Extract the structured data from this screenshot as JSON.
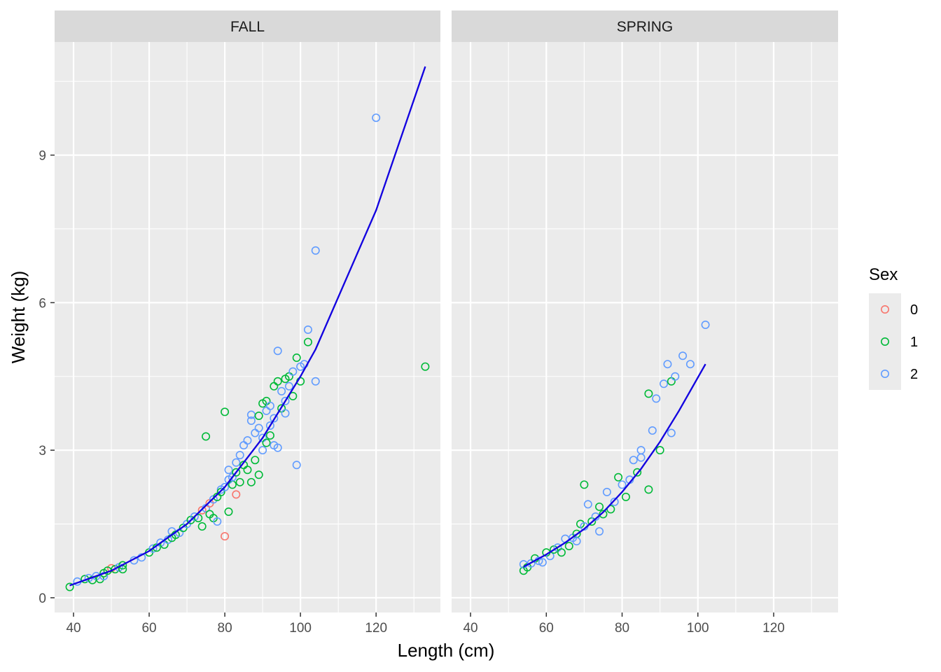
{
  "chart_data": {
    "type": "scatter",
    "xlabel": "Length (cm)",
    "ylabel": "Weight (kg)",
    "xlim": [
      35,
      137
    ],
    "ylim": [
      -0.3,
      11.3
    ],
    "x_ticks": [
      40,
      60,
      80,
      100,
      120
    ],
    "y_ticks": [
      0,
      3,
      6,
      9
    ],
    "grid": true,
    "legend": {
      "title": "Sex",
      "position": "right"
    },
    "groups": [
      {
        "label": "0",
        "color": "#F8766D"
      },
      {
        "label": "1",
        "color": "#00BA38"
      },
      {
        "label": "2",
        "color": "#619CFF"
      }
    ],
    "panels": [
      {
        "title": "FALL",
        "points": [
          {
            "sex": "1",
            "x": 39,
            "y": 0.22
          },
          {
            "sex": "2",
            "x": 41,
            "y": 0.33
          },
          {
            "sex": "1",
            "x": 43,
            "y": 0.38
          },
          {
            "sex": "2",
            "x": 44,
            "y": 0.4
          },
          {
            "sex": "1",
            "x": 45,
            "y": 0.36
          },
          {
            "sex": "2",
            "x": 46,
            "y": 0.44
          },
          {
            "sex": "1",
            "x": 47,
            "y": 0.38
          },
          {
            "sex": "1",
            "x": 48,
            "y": 0.5
          },
          {
            "sex": "2",
            "x": 48,
            "y": 0.44
          },
          {
            "sex": "0",
            "x": 50,
            "y": 0.6
          },
          {
            "sex": "1",
            "x": 49,
            "y": 0.55
          },
          {
            "sex": "1",
            "x": 51,
            "y": 0.58
          },
          {
            "sex": "2",
            "x": 52,
            "y": 0.62
          },
          {
            "sex": "1",
            "x": 53,
            "y": 0.66
          },
          {
            "sex": "1",
            "x": 53,
            "y": 0.58
          },
          {
            "sex": "2",
            "x": 56,
            "y": 0.76
          },
          {
            "sex": "2",
            "x": 58,
            "y": 0.82
          },
          {
            "sex": "1",
            "x": 60,
            "y": 0.92
          },
          {
            "sex": "2",
            "x": 61,
            "y": 1.0
          },
          {
            "sex": "1",
            "x": 62,
            "y": 1.02
          },
          {
            "sex": "2",
            "x": 63,
            "y": 1.12
          },
          {
            "sex": "1",
            "x": 64,
            "y": 1.08
          },
          {
            "sex": "2",
            "x": 65,
            "y": 1.18
          },
          {
            "sex": "1",
            "x": 66,
            "y": 1.22
          },
          {
            "sex": "2",
            "x": 66,
            "y": 1.35
          },
          {
            "sex": "1",
            "x": 67,
            "y": 1.28
          },
          {
            "sex": "2",
            "x": 68,
            "y": 1.32
          },
          {
            "sex": "1",
            "x": 69,
            "y": 1.42
          },
          {
            "sex": "2",
            "x": 70,
            "y": 1.5
          },
          {
            "sex": "1",
            "x": 71,
            "y": 1.58
          },
          {
            "sex": "2",
            "x": 72,
            "y": 1.65
          },
          {
            "sex": "1",
            "x": 73,
            "y": 1.62
          },
          {
            "sex": "0",
            "x": 74,
            "y": 1.78
          },
          {
            "sex": "1",
            "x": 74,
            "y": 1.45
          },
          {
            "sex": "2",
            "x": 75,
            "y": 1.82
          },
          {
            "sex": "1",
            "x": 75,
            "y": 3.28
          },
          {
            "sex": "0",
            "x": 76,
            "y": 1.92
          },
          {
            "sex": "1",
            "x": 76,
            "y": 1.7
          },
          {
            "sex": "2",
            "x": 77,
            "y": 2.0
          },
          {
            "sex": "1",
            "x": 77,
            "y": 1.62
          },
          {
            "sex": "2",
            "x": 78,
            "y": 1.55
          },
          {
            "sex": "1",
            "x": 78,
            "y": 2.05
          },
          {
            "sex": "0",
            "x": 80,
            "y": 1.25
          },
          {
            "sex": "1",
            "x": 80,
            "y": 3.78
          },
          {
            "sex": "2",
            "x": 79,
            "y": 2.2
          },
          {
            "sex": "1",
            "x": 79,
            "y": 2.15
          },
          {
            "sex": "2",
            "x": 80,
            "y": 2.25
          },
          {
            "sex": "1",
            "x": 81,
            "y": 1.75
          },
          {
            "sex": "2",
            "x": 81,
            "y": 2.6
          },
          {
            "sex": "2",
            "x": 81,
            "y": 2.4
          },
          {
            "sex": "1",
            "x": 82,
            "y": 2.3
          },
          {
            "sex": "0",
            "x": 83,
            "y": 2.1
          },
          {
            "sex": "2",
            "x": 82,
            "y": 2.45
          },
          {
            "sex": "1",
            "x": 83,
            "y": 2.55
          },
          {
            "sex": "2",
            "x": 83,
            "y": 2.75
          },
          {
            "sex": "1",
            "x": 84,
            "y": 2.35
          },
          {
            "sex": "2",
            "x": 84,
            "y": 2.9
          },
          {
            "sex": "1",
            "x": 85,
            "y": 2.7
          },
          {
            "sex": "2",
            "x": 85,
            "y": 3.1
          },
          {
            "sex": "1",
            "x": 86,
            "y": 2.6
          },
          {
            "sex": "2",
            "x": 86,
            "y": 3.2
          },
          {
            "sex": "1",
            "x": 87,
            "y": 2.35
          },
          {
            "sex": "2",
            "x": 87,
            "y": 3.72
          },
          {
            "sex": "2",
            "x": 87,
            "y": 3.6
          },
          {
            "sex": "1",
            "x": 88,
            "y": 2.8
          },
          {
            "sex": "2",
            "x": 88,
            "y": 3.35
          },
          {
            "sex": "1",
            "x": 89,
            "y": 2.5
          },
          {
            "sex": "2",
            "x": 89,
            "y": 3.45
          },
          {
            "sex": "1",
            "x": 89,
            "y": 3.7
          },
          {
            "sex": "2",
            "x": 90,
            "y": 3.0
          },
          {
            "sex": "1",
            "x": 90,
            "y": 3.95
          },
          {
            "sex": "2",
            "x": 90,
            "y": 3.25
          },
          {
            "sex": "1",
            "x": 91,
            "y": 3.15
          },
          {
            "sex": "2",
            "x": 91,
            "y": 3.8
          },
          {
            "sex": "1",
            "x": 91,
            "y": 4.0
          },
          {
            "sex": "2",
            "x": 92,
            "y": 3.5
          },
          {
            "sex": "1",
            "x": 92,
            "y": 3.3
          },
          {
            "sex": "2",
            "x": 92,
            "y": 3.9
          },
          {
            "sex": "1",
            "x": 93,
            "y": 4.3
          },
          {
            "sex": "2",
            "x": 93,
            "y": 3.65
          },
          {
            "sex": "2",
            "x": 93,
            "y": 3.1
          },
          {
            "sex": "1",
            "x": 94,
            "y": 4.4
          },
          {
            "sex": "2",
            "x": 94,
            "y": 5.02
          },
          {
            "sex": "2",
            "x": 94,
            "y": 3.05
          },
          {
            "sex": "1",
            "x": 95,
            "y": 3.85
          },
          {
            "sex": "2",
            "x": 95,
            "y": 4.2
          },
          {
            "sex": "1",
            "x": 96,
            "y": 4.45
          },
          {
            "sex": "2",
            "x": 96,
            "y": 4.0
          },
          {
            "sex": "2",
            "x": 96,
            "y": 3.75
          },
          {
            "sex": "1",
            "x": 97,
            "y": 4.5
          },
          {
            "sex": "2",
            "x": 97,
            "y": 4.3
          },
          {
            "sex": "1",
            "x": 98,
            "y": 4.1
          },
          {
            "sex": "2",
            "x": 98,
            "y": 4.6
          },
          {
            "sex": "1",
            "x": 99,
            "y": 4.88
          },
          {
            "sex": "2",
            "x": 99,
            "y": 2.7
          },
          {
            "sex": "2",
            "x": 100,
            "y": 4.7
          },
          {
            "sex": "1",
            "x": 100,
            "y": 4.4
          },
          {
            "sex": "2",
            "x": 101,
            "y": 4.75
          },
          {
            "sex": "1",
            "x": 102,
            "y": 5.2
          },
          {
            "sex": "2",
            "x": 102,
            "y": 5.45
          },
          {
            "sex": "2",
            "x": 104,
            "y": 7.06
          },
          {
            "sex": "2",
            "x": 104,
            "y": 4.4
          },
          {
            "sex": "2",
            "x": 120,
            "y": 9.76
          },
          {
            "sex": "1",
            "x": 133,
            "y": 4.7
          }
        ],
        "fits": [
          {
            "sex": "1",
            "x": [
              39,
              50,
              60,
              70,
              80,
              90,
              100,
              104,
              120,
              133
            ],
            "y": [
              0.25,
              0.55,
              0.95,
              1.5,
              2.25,
              3.25,
              4.5,
              5.05,
              7.88,
              10.8
            ]
          },
          {
            "sex": "2",
            "x": [
              39,
              50,
              60,
              70,
              80,
              90,
              100,
              104,
              120,
              133
            ],
            "y": [
              0.25,
              0.55,
              0.95,
              1.5,
              2.25,
              3.25,
              4.5,
              5.05,
              7.88,
              10.8
            ]
          }
        ]
      },
      {
        "title": "SPRING",
        "points": [
          {
            "sex": "1",
            "x": 54,
            "y": 0.55
          },
          {
            "sex": "2",
            "x": 54,
            "y": 0.68
          },
          {
            "sex": "1",
            "x": 55,
            "y": 0.62
          },
          {
            "sex": "2",
            "x": 56,
            "y": 0.7
          },
          {
            "sex": "1",
            "x": 57,
            "y": 0.8
          },
          {
            "sex": "2",
            "x": 58,
            "y": 0.75
          },
          {
            "sex": "2",
            "x": 59,
            "y": 0.72
          },
          {
            "sex": "1",
            "x": 60,
            "y": 0.92
          },
          {
            "sex": "2",
            "x": 61,
            "y": 0.85
          },
          {
            "sex": "1",
            "x": 62,
            "y": 0.98
          },
          {
            "sex": "2",
            "x": 63,
            "y": 1.02
          },
          {
            "sex": "1",
            "x": 64,
            "y": 0.92
          },
          {
            "sex": "2",
            "x": 65,
            "y": 1.2
          },
          {
            "sex": "1",
            "x": 66,
            "y": 1.05
          },
          {
            "sex": "2",
            "x": 67,
            "y": 1.22
          },
          {
            "sex": "1",
            "x": 68,
            "y": 1.3
          },
          {
            "sex": "2",
            "x": 68,
            "y": 1.15
          },
          {
            "sex": "1",
            "x": 69,
            "y": 1.5
          },
          {
            "sex": "2",
            "x": 70,
            "y": 1.45
          },
          {
            "sex": "1",
            "x": 70,
            "y": 2.3
          },
          {
            "sex": "2",
            "x": 71,
            "y": 1.9
          },
          {
            "sex": "1",
            "x": 72,
            "y": 1.55
          },
          {
            "sex": "2",
            "x": 73,
            "y": 1.65
          },
          {
            "sex": "1",
            "x": 74,
            "y": 1.85
          },
          {
            "sex": "2",
            "x": 74,
            "y": 1.35
          },
          {
            "sex": "1",
            "x": 75,
            "y": 1.7
          },
          {
            "sex": "2",
            "x": 76,
            "y": 2.15
          },
          {
            "sex": "1",
            "x": 77,
            "y": 1.8
          },
          {
            "sex": "2",
            "x": 78,
            "y": 1.95
          },
          {
            "sex": "1",
            "x": 79,
            "y": 2.45
          },
          {
            "sex": "2",
            "x": 80,
            "y": 2.3
          },
          {
            "sex": "1",
            "x": 81,
            "y": 2.05
          },
          {
            "sex": "2",
            "x": 82,
            "y": 2.4
          },
          {
            "sex": "2",
            "x": 83,
            "y": 2.8
          },
          {
            "sex": "1",
            "x": 84,
            "y": 2.55
          },
          {
            "sex": "2",
            "x": 85,
            "y": 3.0
          },
          {
            "sex": "2",
            "x": 85,
            "y": 2.85
          },
          {
            "sex": "1",
            "x": 87,
            "y": 2.2
          },
          {
            "sex": "1",
            "x": 87,
            "y": 4.15
          },
          {
            "sex": "2",
            "x": 88,
            "y": 3.4
          },
          {
            "sex": "2",
            "x": 89,
            "y": 4.05
          },
          {
            "sex": "1",
            "x": 90,
            "y": 3.0
          },
          {
            "sex": "2",
            "x": 91,
            "y": 4.35
          },
          {
            "sex": "2",
            "x": 92,
            "y": 4.75
          },
          {
            "sex": "2",
            "x": 93,
            "y": 3.35
          },
          {
            "sex": "1",
            "x": 93,
            "y": 4.4
          },
          {
            "sex": "2",
            "x": 94,
            "y": 4.5
          },
          {
            "sex": "2",
            "x": 96,
            "y": 4.92
          },
          {
            "sex": "2",
            "x": 98,
            "y": 4.75
          },
          {
            "sex": "2",
            "x": 102,
            "y": 5.55
          }
        ],
        "fits": [
          {
            "sex": "1",
            "x": [
              54,
              60,
              65,
              70,
              75,
              80,
              85,
              90,
              95,
              102
            ],
            "y": [
              0.63,
              0.88,
              1.12,
              1.4,
              1.74,
              2.15,
              2.62,
              3.17,
              3.8,
              4.75
            ]
          },
          {
            "sex": "2",
            "x": [
              54,
              60,
              65,
              70,
              75,
              80,
              85,
              90,
              95,
              102
            ],
            "y": [
              0.63,
              0.88,
              1.12,
              1.4,
              1.74,
              2.15,
              2.62,
              3.17,
              3.8,
              4.75
            ]
          }
        ]
      }
    ]
  },
  "colors": {
    "panel_bg": "#EBEBEB",
    "strip_bg": "#D9D9D9",
    "grid": "#FFFFFF",
    "fit_sex1": "#1F3DDB",
    "fit_sex2": "#1400E0"
  }
}
